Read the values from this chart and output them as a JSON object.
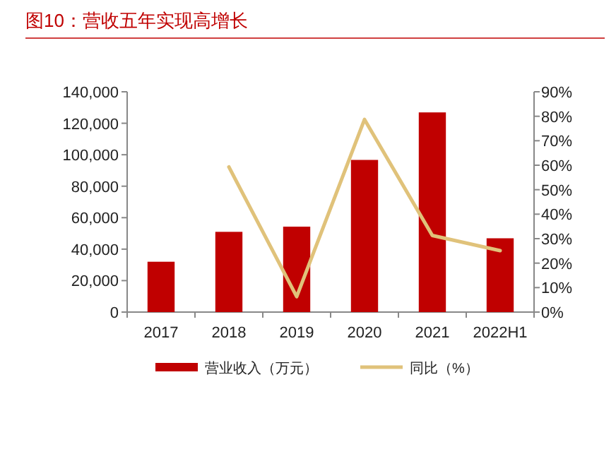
{
  "chart_data": {
    "type": "bar",
    "title": "图10：营收五年实现高增长",
    "categories": [
      "2017",
      "2018",
      "2019",
      "2020",
      "2021",
      "2022H1"
    ],
    "series": [
      {
        "name": "营业收入（万元）",
        "color": "#c00000",
        "values": [
          32000,
          51000,
          54300,
          96700,
          126900,
          46900
        ]
      },
      {
        "name": "同比（%）",
        "type": "line",
        "axis": "y2",
        "color": "#e0c27a",
        "values": [
          null,
          59.3,
          6.3,
          78.7,
          31.3,
          25.1
        ]
      }
    ],
    "ylim": [
      0,
      140000
    ],
    "yticks": [
      0,
      {
        "value": 20000,
        "label": "20,000"
      },
      {
        "value": 40000,
        "label": "40,000"
      },
      {
        "value": 60000,
        "label": "60,000"
      },
      {
        "value": 80000,
        "label": "80,000"
      },
      {
        "value": 100000,
        "label": "100,000"
      },
      {
        "value": 120000,
        "label": "120,000"
      },
      {
        "value": 140000,
        "label": "140,000"
      }
    ],
    "y2lim": [
      0,
      90
    ],
    "y2ticks": [
      {
        "value": 0,
        "label": "0%"
      },
      {
        "value": 10,
        "label": "10%"
      },
      {
        "value": 20,
        "label": "20%"
      },
      {
        "value": 30,
        "label": "30%"
      },
      {
        "value": 40,
        "label": "40%"
      },
      {
        "value": 50,
        "label": "50%"
      },
      {
        "value": 60,
        "label": "60%"
      },
      {
        "value": 70,
        "label": "70%"
      },
      {
        "value": 80,
        "label": "80%"
      },
      {
        "value": 90,
        "label": "90%"
      }
    ],
    "legend": "bottom",
    "grid": false
  }
}
